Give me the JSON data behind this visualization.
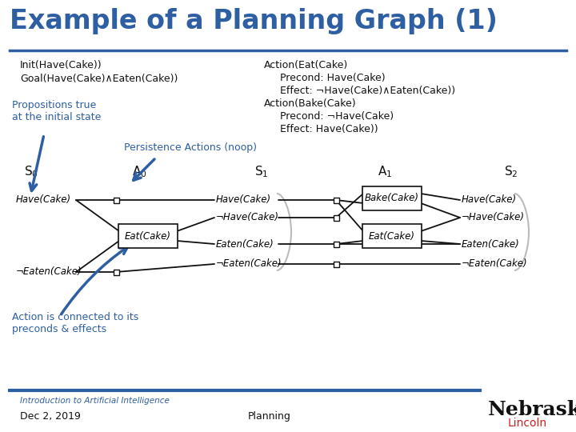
{
  "title": "Example of a Planning Graph (1)",
  "title_color": "#2E5FA3",
  "title_fontsize": 24,
  "bg_color": "#FFFFFF",
  "blue_color": "#2E5FA3",
  "gray_color": "#BBBBBB",
  "black_color": "#111111",
  "red_color": "#CC2222",
  "init_text": "Init(Have(Cake))\nGoal(Have(Cake)∧Eaten(Cake))",
  "action_text": "Action(Eat(Cake)\n   Precond: Have(Cake)\n   Effect: ¬Have(Cake)∧Eaten(Cake))\nAction(Bake(Cake)\n   Precond: ¬Have(Cake)\n   Effect: Have(Cake))",
  "prop_blue_1": "Propositions true\nat the initial state",
  "persist_blue": "Persistence Actions (noop)",
  "action_blue": "Action is connected to its\npreconds & effects",
  "footer_line_color": "#2E5FA3",
  "footer_course": "Introduction to Artificial Intelligence",
  "footer_date": "Dec 2, 2019",
  "footer_topic": "Planning",
  "footer_univ1": "Nebraska",
  "footer_univ2": "Lincoln"
}
